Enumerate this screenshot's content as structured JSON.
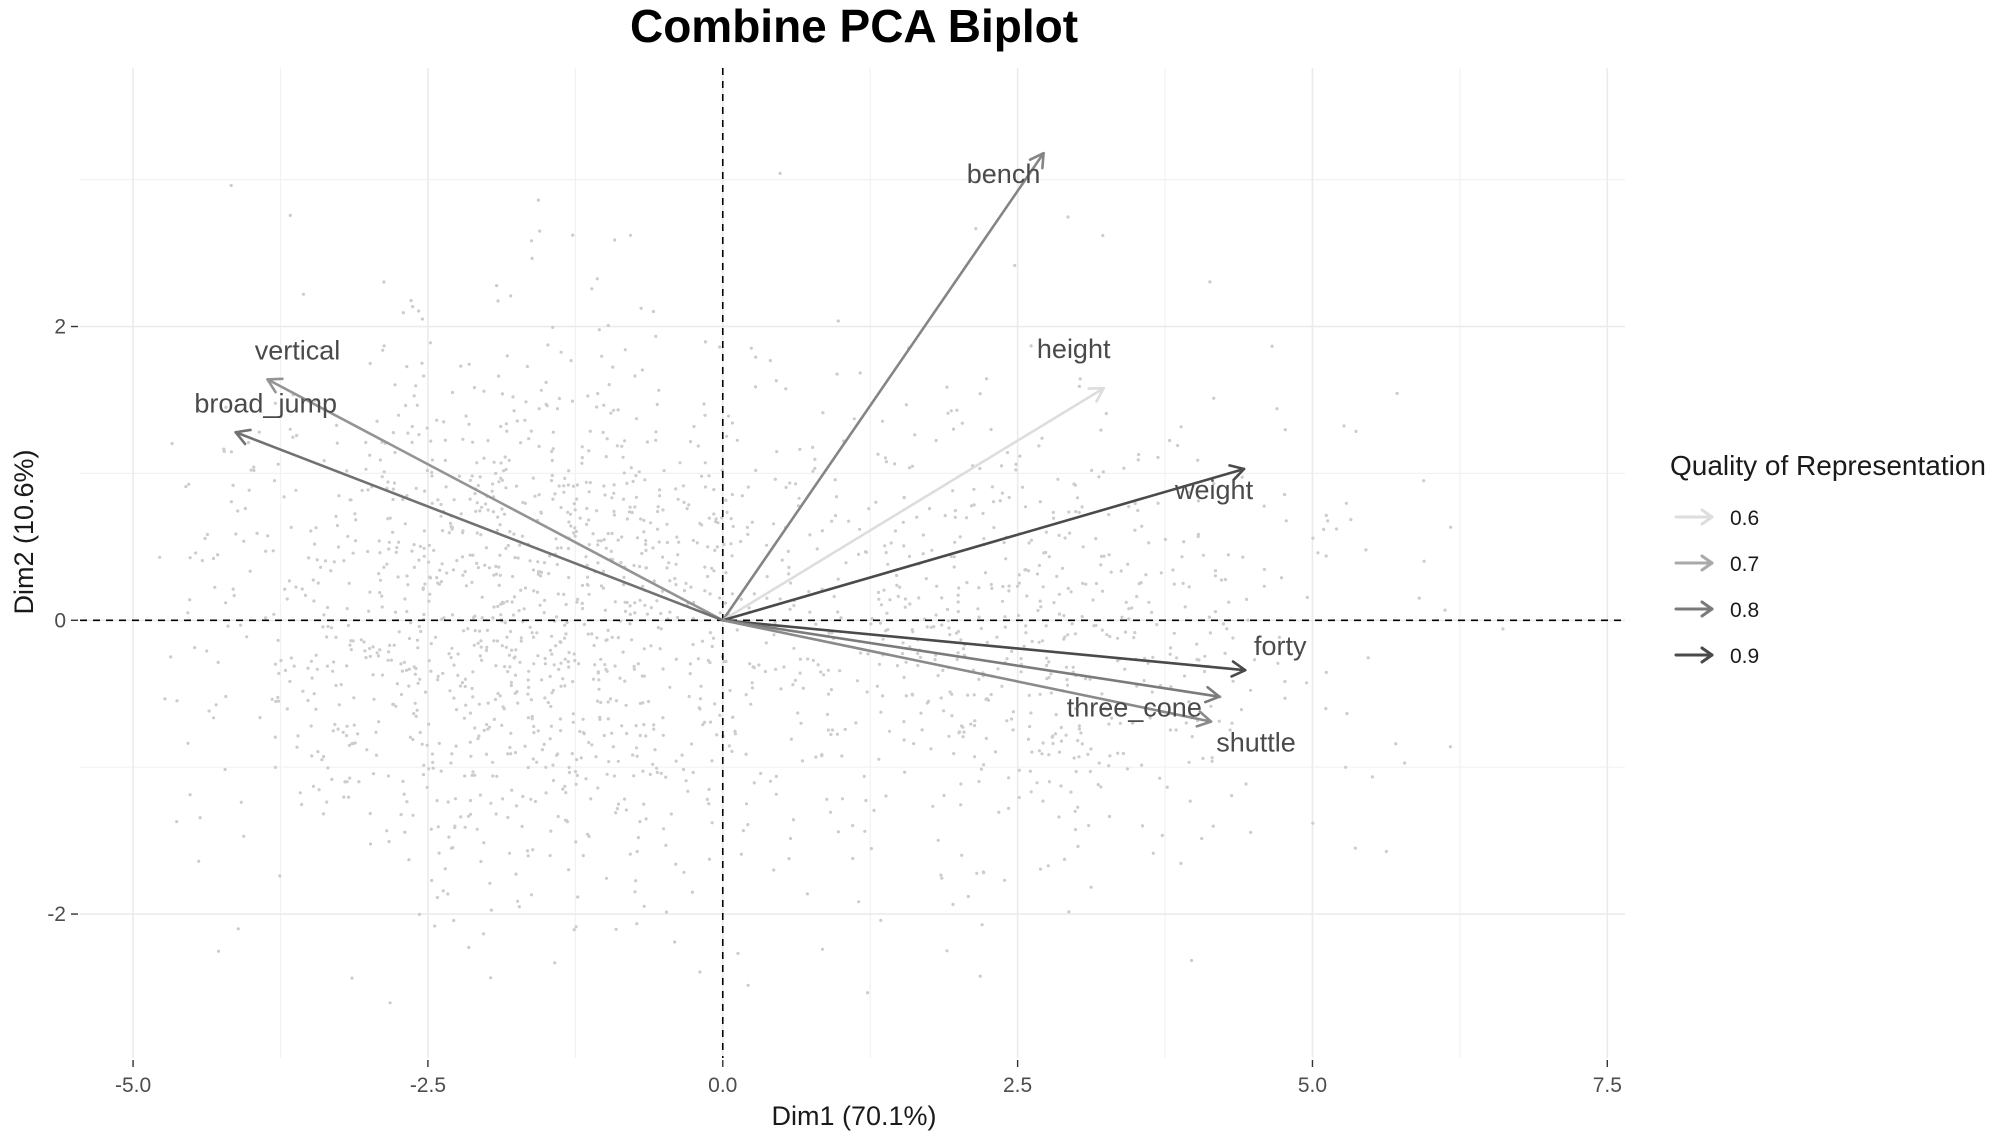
{
  "chart_data": {
    "type": "scatter",
    "subtype": "pca-biplot",
    "title": "Combine PCA Biplot",
    "xlabel": "Dim1 (70.1%)",
    "ylabel": "Dim2 (10.6%)",
    "xlim": [
      -5.45,
      7.65
    ],
    "ylim": [
      -2.98,
      3.76
    ],
    "x_ticks": [
      -5.0,
      -2.5,
      0.0,
      2.5,
      5.0,
      7.5
    ],
    "x_tick_labels": [
      "-5.0",
      "-2.5",
      "0.0",
      "2.5",
      "5.0",
      "7.5"
    ],
    "y_ticks": [
      -2,
      0,
      2
    ],
    "y_tick_labels": [
      "-2",
      "0",
      "2"
    ],
    "grid": true,
    "reference_lines": {
      "x": 0,
      "y": 0,
      "style": "dashed"
    },
    "individuals": {
      "color": "#cccccc",
      "count": 2000,
      "shown": "dense cloud of light grey points spanning roughly x -4.8 to 7.0 and y -2.6 to 3.4"
    },
    "variables": [
      {
        "name": "bench",
        "x": 2.72,
        "y": 3.18,
        "cos2": 0.78
      },
      {
        "name": "height",
        "x": 3.23,
        "y": 1.58,
        "cos2": 0.6
      },
      {
        "name": "weight",
        "x": 4.42,
        "y": 1.03,
        "cos2": 0.92
      },
      {
        "name": "vertical",
        "x": -3.86,
        "y": 1.64,
        "cos2": 0.75
      },
      {
        "name": "broad_jump",
        "x": -4.13,
        "y": 1.28,
        "cos2": 0.82
      },
      {
        "name": "forty",
        "x": 4.43,
        "y": -0.34,
        "cos2": 0.9
      },
      {
        "name": "three_cone",
        "x": 4.21,
        "y": -0.52,
        "cos2": 0.8
      },
      {
        "name": "shuttle",
        "x": 4.14,
        "y": -0.69,
        "cos2": 0.77
      }
    ],
    "legend": {
      "title": "Quality of Representation",
      "position": "right",
      "entries": [
        {
          "label": "0.6",
          "value": 0.6,
          "color": "#dddddd"
        },
        {
          "label": "0.7",
          "value": 0.7,
          "color": "#a9a9a9"
        },
        {
          "label": "0.8",
          "value": 0.8,
          "color": "#7a7a7a"
        },
        {
          "label": "0.9",
          "value": 0.9,
          "color": "#4a4a4a"
        }
      ]
    }
  }
}
